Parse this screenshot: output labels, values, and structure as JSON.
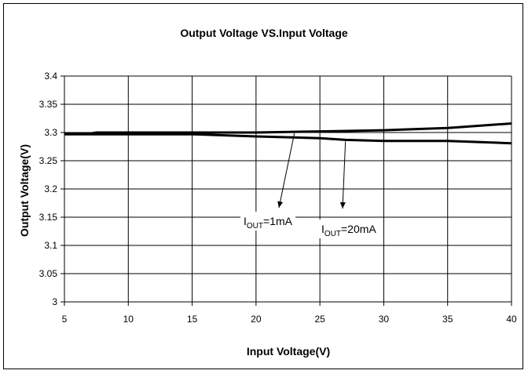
{
  "chart_data": {
    "type": "line",
    "title": "Output Voltage VS.Input Voltage",
    "xlabel": "Input Voltage(V)",
    "ylabel": "Output Voltage(V)",
    "xlim": [
      5,
      40
    ],
    "ylim": [
      3,
      3.4
    ],
    "x_ticks": [
      "5",
      "10",
      "15",
      "20",
      "25",
      "30",
      "35",
      "40"
    ],
    "y_ticks": [
      "3",
      "3.05",
      "3.1",
      "3.15",
      "3.2",
      "3.25",
      "3.3",
      "3.35",
      "3.4"
    ],
    "grid": true,
    "series": [
      {
        "name": "IOUT=1mA",
        "x": [
          5,
          7,
          7.5,
          10,
          15,
          20,
          25,
          30,
          35,
          40
        ],
        "y": [
          3.298,
          3.298,
          3.3,
          3.3,
          3.3,
          3.3,
          3.302,
          3.304,
          3.308,
          3.316
        ]
      },
      {
        "name": "IOUT=20mA",
        "x": [
          5,
          10,
          15,
          20,
          25,
          27,
          30,
          35,
          40
        ],
        "y": [
          3.297,
          3.297,
          3.297,
          3.293,
          3.29,
          3.287,
          3.285,
          3.285,
          3.281
        ]
      }
    ],
    "annotations": [
      {
        "base": "I",
        "sub": "OUT",
        "rest": "=1mA",
        "series": 0
      },
      {
        "base": "I",
        "sub": "OUT",
        "rest": "=20mA",
        "series": 1
      }
    ]
  }
}
